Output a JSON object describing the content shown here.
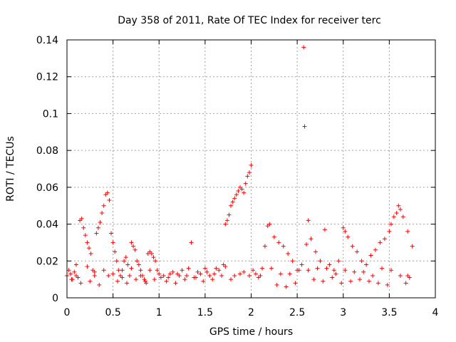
{
  "chart_data": {
    "type": "scatter",
    "title": "Day 358 of 2011, Rate Of TEC Index for receiver terc",
    "xlabel": "GPS time / hours",
    "ylabel": "ROTI / TECUs",
    "xlim": [
      0,
      4
    ],
    "ylim": [
      0,
      0.14
    ],
    "grid": true,
    "marker": "+",
    "marker_color": "#ff0000",
    "x_ticks": [
      0,
      0.5,
      1,
      1.5,
      2,
      2.5,
      3,
      3.5,
      4
    ],
    "x_tick_labels": [
      "0",
      "0.5",
      "1",
      "1.5",
      "2",
      "2.5",
      "3",
      "3.5",
      "4"
    ],
    "y_ticks": [
      0,
      0.02,
      0.04,
      0.06,
      0.08,
      0.1,
      0.12,
      0.14
    ],
    "y_tick_labels": [
      "0",
      "0.02",
      "0.04",
      "0.06",
      "0.08",
      "0.1",
      "0.12",
      "0.14"
    ],
    "series": [
      {
        "name": "ROTI",
        "x": [
          0.0,
          0.02,
          0.04,
          0.06,
          0.08,
          0.1,
          0.12,
          0.14,
          0.16,
          0.18,
          0.2,
          0.22,
          0.24,
          0.26,
          0.28,
          0.3,
          0.32,
          0.34,
          0.36,
          0.38,
          0.4,
          0.42,
          0.44,
          0.46,
          0.48,
          0.5,
          0.52,
          0.54,
          0.56,
          0.58,
          0.6,
          0.62,
          0.64,
          0.66,
          0.68,
          0.7,
          0.72,
          0.74,
          0.76,
          0.78,
          0.8,
          0.82,
          0.84,
          0.86,
          0.88,
          0.9,
          0.92,
          0.94,
          0.96,
          0.98,
          1.0,
          1.05,
          1.1,
          1.15,
          1.2,
          1.25,
          1.3,
          1.35,
          1.4,
          1.45,
          1.5,
          1.55,
          1.6,
          1.65,
          1.7,
          1.72,
          1.74,
          1.76,
          1.78,
          1.8,
          1.82,
          1.84,
          1.86,
          1.88,
          1.9,
          1.92,
          1.94,
          1.96,
          1.98,
          2.0,
          2.02,
          2.05,
          2.1,
          2.15,
          2.18,
          2.2,
          2.25,
          2.3,
          2.35,
          2.4,
          2.45,
          2.5,
          2.55,
          2.57,
          2.58,
          2.6,
          2.62,
          2.65,
          2.7,
          2.75,
          2.8,
          2.85,
          2.9,
          2.95,
          3.0,
          3.02,
          3.05,
          3.1,
          3.15,
          3.2,
          3.25,
          3.3,
          3.35,
          3.4,
          3.45,
          3.5,
          3.52,
          3.55,
          3.58,
          3.6,
          3.62,
          3.65,
          3.7,
          3.75,
          0.05,
          0.15,
          0.25,
          0.35,
          0.45,
          0.55,
          0.65,
          0.75,
          0.85,
          0.95,
          1.08,
          1.18,
          1.28,
          1.38,
          1.48,
          1.58,
          1.68,
          1.78,
          1.88,
          1.98,
          2.08,
          2.28,
          2.38,
          2.48,
          2.68,
          2.78,
          2.88,
          2.98,
          3.08,
          3.18,
          3.28,
          3.38,
          3.48,
          3.68,
          3.72,
          0.1,
          0.3,
          0.5,
          0.7,
          0.9,
          1.12,
          1.32,
          1.52,
          1.72,
          1.92,
          2.12,
          2.32,
          2.52,
          2.72,
          2.92,
          3.12,
          3.32,
          3.52,
          3.7,
          0.22,
          0.4,
          0.6,
          0.8,
          1.02,
          1.22,
          1.42,
          1.62,
          1.82,
          2.22,
          2.42,
          2.62,
          2.82,
          3.02,
          3.22,
          3.42,
          3.62
        ],
        "y": [
          0.012,
          0.015,
          0.013,
          0.01,
          0.014,
          0.012,
          0.011,
          0.042,
          0.043,
          0.038,
          0.034,
          0.03,
          0.027,
          0.024,
          0.015,
          0.012,
          0.035,
          0.038,
          0.041,
          0.046,
          0.05,
          0.056,
          0.057,
          0.053,
          0.035,
          0.03,
          0.025,
          0.02,
          0.015,
          0.012,
          0.011,
          0.02,
          0.022,
          0.018,
          0.012,
          0.03,
          0.028,
          0.026,
          0.02,
          0.018,
          0.015,
          0.012,
          0.01,
          0.008,
          0.024,
          0.025,
          0.024,
          0.022,
          0.02,
          0.015,
          0.013,
          0.012,
          0.011,
          0.014,
          0.013,
          0.015,
          0.012,
          0.03,
          0.011,
          0.013,
          0.016,
          0.012,
          0.013,
          0.015,
          0.018,
          0.04,
          0.042,
          0.045,
          0.05,
          0.052,
          0.054,
          0.056,
          0.058,
          0.06,
          0.059,
          0.057,
          0.062,
          0.066,
          0.068,
          0.072,
          0.015,
          0.013,
          0.012,
          0.028,
          0.039,
          0.04,
          0.033,
          0.03,
          0.028,
          0.024,
          0.02,
          0.015,
          0.018,
          0.136,
          0.093,
          0.029,
          0.042,
          0.032,
          0.025,
          0.02,
          0.037,
          0.018,
          0.015,
          0.02,
          0.038,
          0.036,
          0.033,
          0.028,
          0.025,
          0.02,
          0.018,
          0.023,
          0.026,
          0.03,
          0.032,
          0.036,
          0.04,
          0.044,
          0.046,
          0.05,
          0.048,
          0.044,
          0.036,
          0.028,
          0.01,
          0.008,
          0.009,
          0.007,
          0.012,
          0.009,
          0.008,
          0.01,
          0.009,
          0.01,
          0.009,
          0.008,
          0.01,
          0.011,
          0.009,
          0.01,
          0.012,
          0.01,
          0.013,
          0.012,
          0.011,
          0.007,
          0.006,
          0.008,
          0.01,
          0.009,
          0.011,
          0.008,
          0.009,
          0.01,
          0.009,
          0.008,
          0.007,
          0.008,
          0.011,
          0.018,
          0.014,
          0.013,
          0.016,
          0.015,
          0.013,
          0.016,
          0.014,
          0.017,
          0.014,
          0.016,
          0.013,
          0.015,
          0.016,
          0.013,
          0.014,
          0.012,
          0.015,
          0.012,
          0.017,
          0.015,
          0.015,
          0.012,
          0.011,
          0.012,
          0.014,
          0.016,
          0.012,
          0.016,
          0.013,
          0.015,
          0.016,
          0.015,
          0.014,
          0.016,
          0.012
        ]
      }
    ]
  }
}
